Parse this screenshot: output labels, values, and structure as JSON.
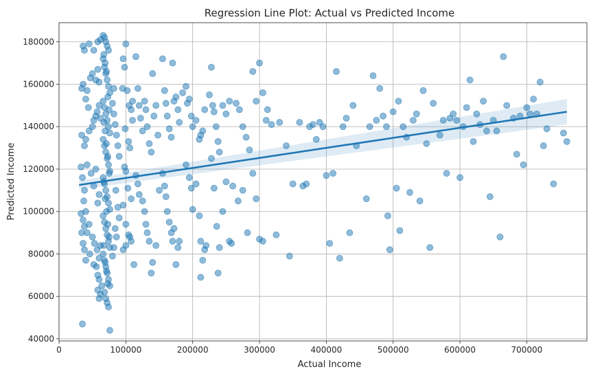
{
  "chart_data": {
    "type": "scatter",
    "title": "Regression Line Plot: Actual vs Predicted Income",
    "xlabel": "Actual Income",
    "ylabel": "Predicted Income",
    "xlim": [
      0,
      790000
    ],
    "ylim": [
      39000,
      189000
    ],
    "xticks": [
      0,
      100000,
      200000,
      300000,
      400000,
      500000,
      600000,
      700000
    ],
    "yticks": [
      40000,
      60000,
      80000,
      100000,
      120000,
      140000,
      160000,
      180000
    ],
    "xtick_labels": [
      "0",
      "100000",
      "200000",
      "300000",
      "400000",
      "500000",
      "600000",
      "700000"
    ],
    "ytick_labels": [
      "40000",
      "60000",
      "80000",
      "100000",
      "120000",
      "140000",
      "160000",
      "180000"
    ],
    "grid": true,
    "color": "#1f77b4",
    "regression": {
      "x": [
        30000,
        760000
      ],
      "y": [
        112500,
        147000
      ],
      "ci_lower": [
        110500,
        141000
      ],
      "ci_upper": [
        114500,
        153000
      ]
    },
    "points": [
      [
        36000,
        178000
      ],
      [
        38000,
        176000
      ],
      [
        45000,
        179000
      ],
      [
        52000,
        176000
      ],
      [
        58000,
        180000
      ],
      [
        62000,
        181000
      ],
      [
        34000,
        158000
      ],
      [
        36000,
        160000
      ],
      [
        42000,
        157000
      ],
      [
        47000,
        163000
      ],
      [
        50000,
        165000
      ],
      [
        55000,
        162000
      ],
      [
        58000,
        167000
      ],
      [
        60000,
        161000
      ],
      [
        40000,
        153000
      ],
      [
        44000,
        149000
      ],
      [
        33000,
        121000
      ],
      [
        34000,
        136000
      ],
      [
        38000,
        131000
      ],
      [
        40000,
        134000
      ],
      [
        45000,
        138000
      ],
      [
        50000,
        140000
      ],
      [
        52000,
        143000
      ],
      [
        55000,
        145000
      ],
      [
        57000,
        147000
      ],
      [
        60000,
        150000
      ],
      [
        62000,
        144000
      ],
      [
        35000,
        116000
      ],
      [
        38000,
        110000
      ],
      [
        42000,
        122000
      ],
      [
        48000,
        118000
      ],
      [
        52000,
        112000
      ],
      [
        55000,
        120000
      ],
      [
        58000,
        104000
      ],
      [
        60000,
        108000
      ],
      [
        37000,
        105000
      ],
      [
        40000,
        100000
      ],
      [
        33000,
        99000
      ],
      [
        36000,
        96000
      ],
      [
        38000,
        93000
      ],
      [
        42000,
        90000
      ],
      [
        45000,
        94000
      ],
      [
        50000,
        88000
      ],
      [
        53000,
        85000
      ],
      [
        57000,
        82000
      ],
      [
        60000,
        78000
      ],
      [
        62000,
        84000
      ],
      [
        34000,
        90000
      ],
      [
        36000,
        85000
      ],
      [
        38000,
        82000
      ],
      [
        40000,
        77000
      ],
      [
        46000,
        80000
      ],
      [
        52000,
        75000
      ],
      [
        56000,
        74000
      ],
      [
        58000,
        70000
      ],
      [
        60000,
        68000
      ],
      [
        35000,
        47000
      ],
      [
        60000,
        59000
      ],
      [
        62000,
        61000
      ],
      [
        58000,
        63000
      ],
      [
        64000,
        65000
      ],
      [
        66000,
        183000
      ],
      [
        68000,
        182000
      ],
      [
        70000,
        180000
      ],
      [
        72000,
        178000
      ],
      [
        74000,
        176000
      ],
      [
        66000,
        172000
      ],
      [
        68000,
        168000
      ],
      [
        70000,
        165000
      ],
      [
        72000,
        162000
      ],
      [
        74000,
        159000
      ],
      [
        76000,
        156000
      ],
      [
        66000,
        152000
      ],
      [
        68000,
        149000
      ],
      [
        70000,
        146000
      ],
      [
        72000,
        143000
      ],
      [
        74000,
        140000
      ],
      [
        76000,
        137000
      ],
      [
        66000,
        134000
      ],
      [
        68000,
        131000
      ],
      [
        70000,
        128000
      ],
      [
        72000,
        125000
      ],
      [
        74000,
        122000
      ],
      [
        76000,
        119000
      ],
      [
        66000,
        116000
      ],
      [
        68000,
        113000
      ],
      [
        70000,
        110000
      ],
      [
        72000,
        107000
      ],
      [
        74000,
        104000
      ],
      [
        76000,
        101000
      ],
      [
        66000,
        98000
      ],
      [
        68000,
        95000
      ],
      [
        70000,
        92000
      ],
      [
        72000,
        89000
      ],
      [
        74000,
        86000
      ],
      [
        76000,
        83000
      ],
      [
        66000,
        80000
      ],
      [
        68000,
        77000
      ],
      [
        70000,
        74000
      ],
      [
        72000,
        71000
      ],
      [
        74000,
        68000
      ],
      [
        76000,
        65000
      ],
      [
        68000,
        62000
      ],
      [
        70000,
        59000
      ],
      [
        72000,
        57000
      ],
      [
        74000,
        55000
      ],
      [
        76000,
        44000
      ],
      [
        67000,
        174000
      ],
      [
        69000,
        170000
      ],
      [
        71000,
        166000
      ],
      [
        73000,
        154000
      ],
      [
        75000,
        148000
      ],
      [
        67000,
        142000
      ],
      [
        69000,
        138000
      ],
      [
        71000,
        132000
      ],
      [
        73000,
        126000
      ],
      [
        75000,
        118000
      ],
      [
        67000,
        114000
      ],
      [
        69000,
        106000
      ],
      [
        71000,
        100000
      ],
      [
        73000,
        94000
      ],
      [
        75000,
        88000
      ],
      [
        67000,
        84000
      ],
      [
        69000,
        76000
      ],
      [
        71000,
        72000
      ],
      [
        73000,
        66000
      ],
      [
        80000,
        151000
      ],
      [
        82000,
        146000
      ],
      [
        84000,
        141000
      ],
      [
        86000,
        136000
      ],
      [
        88000,
        131000
      ],
      [
        90000,
        126000
      ],
      [
        82000,
        158000
      ],
      [
        85000,
        110000
      ],
      [
        88000,
        102000
      ],
      [
        90000,
        97000
      ],
      [
        84000,
        92000
      ],
      [
        86000,
        88000
      ],
      [
        82000,
        83000
      ],
      [
        80000,
        79000
      ],
      [
        96000,
        172000
      ],
      [
        100000,
        179000
      ],
      [
        98000,
        168000
      ],
      [
        95000,
        158000
      ],
      [
        102000,
        157000
      ],
      [
        105000,
        150000
      ],
      [
        108000,
        148000
      ],
      [
        110000,
        152000
      ],
      [
        99000,
        139000
      ],
      [
        104000,
        133000
      ],
      [
        106000,
        130000
      ],
      [
        110000,
        143000
      ],
      [
        98000,
        121000
      ],
      [
        100000,
        119000
      ],
      [
        103000,
        111000
      ],
      [
        108000,
        106000
      ],
      [
        96000,
        103000
      ],
      [
        100000,
        94000
      ],
      [
        104000,
        89000
      ],
      [
        108000,
        86000
      ],
      [
        112000,
        75000
      ],
      [
        96000,
        82000
      ],
      [
        100000,
        84000
      ],
      [
        106000,
        88000
      ],
      [
        115000,
        173000
      ],
      [
        118000,
        158000
      ],
      [
        120000,
        150000
      ],
      [
        122000,
        144000
      ],
      [
        125000,
        138000
      ],
      [
        128000,
        152000
      ],
      [
        130000,
        148000
      ],
      [
        132000,
        140000
      ],
      [
        135000,
        132000
      ],
      [
        138000,
        128000
      ],
      [
        140000,
        165000
      ],
      [
        142000,
        145000
      ],
      [
        145000,
        150000
      ],
      [
        148000,
        136000
      ],
      [
        115000,
        117000
      ],
      [
        118000,
        113000
      ],
      [
        120000,
        108000
      ],
      [
        125000,
        105000
      ],
      [
        128000,
        100000
      ],
      [
        130000,
        94000
      ],
      [
        132000,
        90000
      ],
      [
        135000,
        86000
      ],
      [
        138000,
        71000
      ],
      [
        140000,
        76000
      ],
      [
        145000,
        84000
      ],
      [
        150000,
        110000
      ],
      [
        155000,
        172000
      ],
      [
        158000,
        157000
      ],
      [
        160000,
        151000
      ],
      [
        162000,
        145000
      ],
      [
        165000,
        139000
      ],
      [
        168000,
        135000
      ],
      [
        170000,
        170000
      ],
      [
        172000,
        152000
      ],
      [
        175000,
        154000
      ],
      [
        178000,
        148000
      ],
      [
        180000,
        142000
      ],
      [
        155000,
        118000
      ],
      [
        158000,
        112000
      ],
      [
        160000,
        107000
      ],
      [
        162000,
        100000
      ],
      [
        165000,
        95000
      ],
      [
        168000,
        90000
      ],
      [
        170000,
        86000
      ],
      [
        172000,
        92000
      ],
      [
        175000,
        75000
      ],
      [
        178000,
        83000
      ],
      [
        180000,
        86000
      ],
      [
        185000,
        156000
      ],
      [
        190000,
        159000
      ],
      [
        192000,
        151000
      ],
      [
        195000,
        153000
      ],
      [
        198000,
        145000
      ],
      [
        200000,
        140000
      ],
      [
        205000,
        143000
      ],
      [
        210000,
        134000
      ],
      [
        212000,
        136000
      ],
      [
        215000,
        138000
      ],
      [
        218000,
        148000
      ],
      [
        190000,
        122000
      ],
      [
        195000,
        116000
      ],
      [
        198000,
        111000
      ],
      [
        200000,
        101000
      ],
      [
        205000,
        113000
      ],
      [
        210000,
        98000
      ],
      [
        212000,
        86000
      ],
      [
        215000,
        77000
      ],
      [
        218000,
        82000
      ],
      [
        220000,
        84000
      ],
      [
        212000,
        69000
      ],
      [
        225000,
        155000
      ],
      [
        228000,
        168000
      ],
      [
        230000,
        150000
      ],
      [
        232000,
        147000
      ],
      [
        235000,
        140000
      ],
      [
        238000,
        133000
      ],
      [
        240000,
        128000
      ],
      [
        245000,
        150000
      ],
      [
        250000,
        146000
      ],
      [
        255000,
        152000
      ],
      [
        228000,
        125000
      ],
      [
        232000,
        111000
      ],
      [
        236000,
        93000
      ],
      [
        238000,
        71000
      ],
      [
        240000,
        83000
      ],
      [
        245000,
        100000
      ],
      [
        250000,
        114000
      ],
      [
        255000,
        86000
      ],
      [
        258000,
        85000
      ],
      [
        260000,
        112000
      ],
      [
        265000,
        151000
      ],
      [
        270000,
        148000
      ],
      [
        275000,
        140000
      ],
      [
        280000,
        135000
      ],
      [
        285000,
        129000
      ],
      [
        290000,
        166000
      ],
      [
        295000,
        152000
      ],
      [
        300000,
        170000
      ],
      [
        305000,
        156000
      ],
      [
        310000,
        143000
      ],
      [
        268000,
        105000
      ],
      [
        275000,
        110000
      ],
      [
        282000,
        90000
      ],
      [
        290000,
        118000
      ],
      [
        295000,
        106000
      ],
      [
        300000,
        87000
      ],
      [
        305000,
        86000
      ],
      [
        312000,
        148000
      ],
      [
        318000,
        141000
      ],
      [
        325000,
        89000
      ],
      [
        330000,
        142000
      ],
      [
        340000,
        131000
      ],
      [
        345000,
        79000
      ],
      [
        350000,
        113000
      ],
      [
        360000,
        142000
      ],
      [
        365000,
        112000
      ],
      [
        370000,
        113000
      ],
      [
        375000,
        140000
      ],
      [
        380000,
        141000
      ],
      [
        385000,
        134000
      ],
      [
        390000,
        142000
      ],
      [
        395000,
        140000
      ],
      [
        400000,
        117000
      ],
      [
        405000,
        85000
      ],
      [
        410000,
        118000
      ],
      [
        415000,
        166000
      ],
      [
        420000,
        78000
      ],
      [
        425000,
        140000
      ],
      [
        430000,
        144000
      ],
      [
        435000,
        90000
      ],
      [
        440000,
        150000
      ],
      [
        445000,
        131000
      ],
      [
        460000,
        106000
      ],
      [
        465000,
        140000
      ],
      [
        470000,
        164000
      ],
      [
        475000,
        143000
      ],
      [
        480000,
        158000
      ],
      [
        485000,
        145000
      ],
      [
        490000,
        140000
      ],
      [
        492000,
        98000
      ],
      [
        495000,
        82000
      ],
      [
        500000,
        147000
      ],
      [
        505000,
        111000
      ],
      [
        508000,
        152000
      ],
      [
        510000,
        91000
      ],
      [
        515000,
        140000
      ],
      [
        520000,
        135000
      ],
      [
        525000,
        109000
      ],
      [
        530000,
        143000
      ],
      [
        535000,
        146000
      ],
      [
        540000,
        105000
      ],
      [
        545000,
        157000
      ],
      [
        550000,
        132000
      ],
      [
        555000,
        83000
      ],
      [
        560000,
        151000
      ],
      [
        570000,
        136000
      ],
      [
        575000,
        143000
      ],
      [
        580000,
        118000
      ],
      [
        585000,
        144000
      ],
      [
        590000,
        146000
      ],
      [
        595000,
        143000
      ],
      [
        600000,
        116000
      ],
      [
        605000,
        140000
      ],
      [
        610000,
        149000
      ],
      [
        615000,
        162000
      ],
      [
        620000,
        133000
      ],
      [
        625000,
        146000
      ],
      [
        630000,
        141000
      ],
      [
        635000,
        152000
      ],
      [
        640000,
        138000
      ],
      [
        645000,
        107000
      ],
      [
        650000,
        143000
      ],
      [
        655000,
        138000
      ],
      [
        660000,
        88000
      ],
      [
        665000,
        173000
      ],
      [
        670000,
        150000
      ],
      [
        680000,
        144000
      ],
      [
        685000,
        127000
      ],
      [
        690000,
        145000
      ],
      [
        695000,
        122000
      ],
      [
        700000,
        149000
      ],
      [
        705000,
        146000
      ],
      [
        710000,
        153000
      ],
      [
        715000,
        146000
      ],
      [
        720000,
        161000
      ],
      [
        725000,
        131000
      ],
      [
        730000,
        139000
      ],
      [
        740000,
        113000
      ],
      [
        755000,
        137000
      ],
      [
        760000,
        133000
      ]
    ]
  }
}
